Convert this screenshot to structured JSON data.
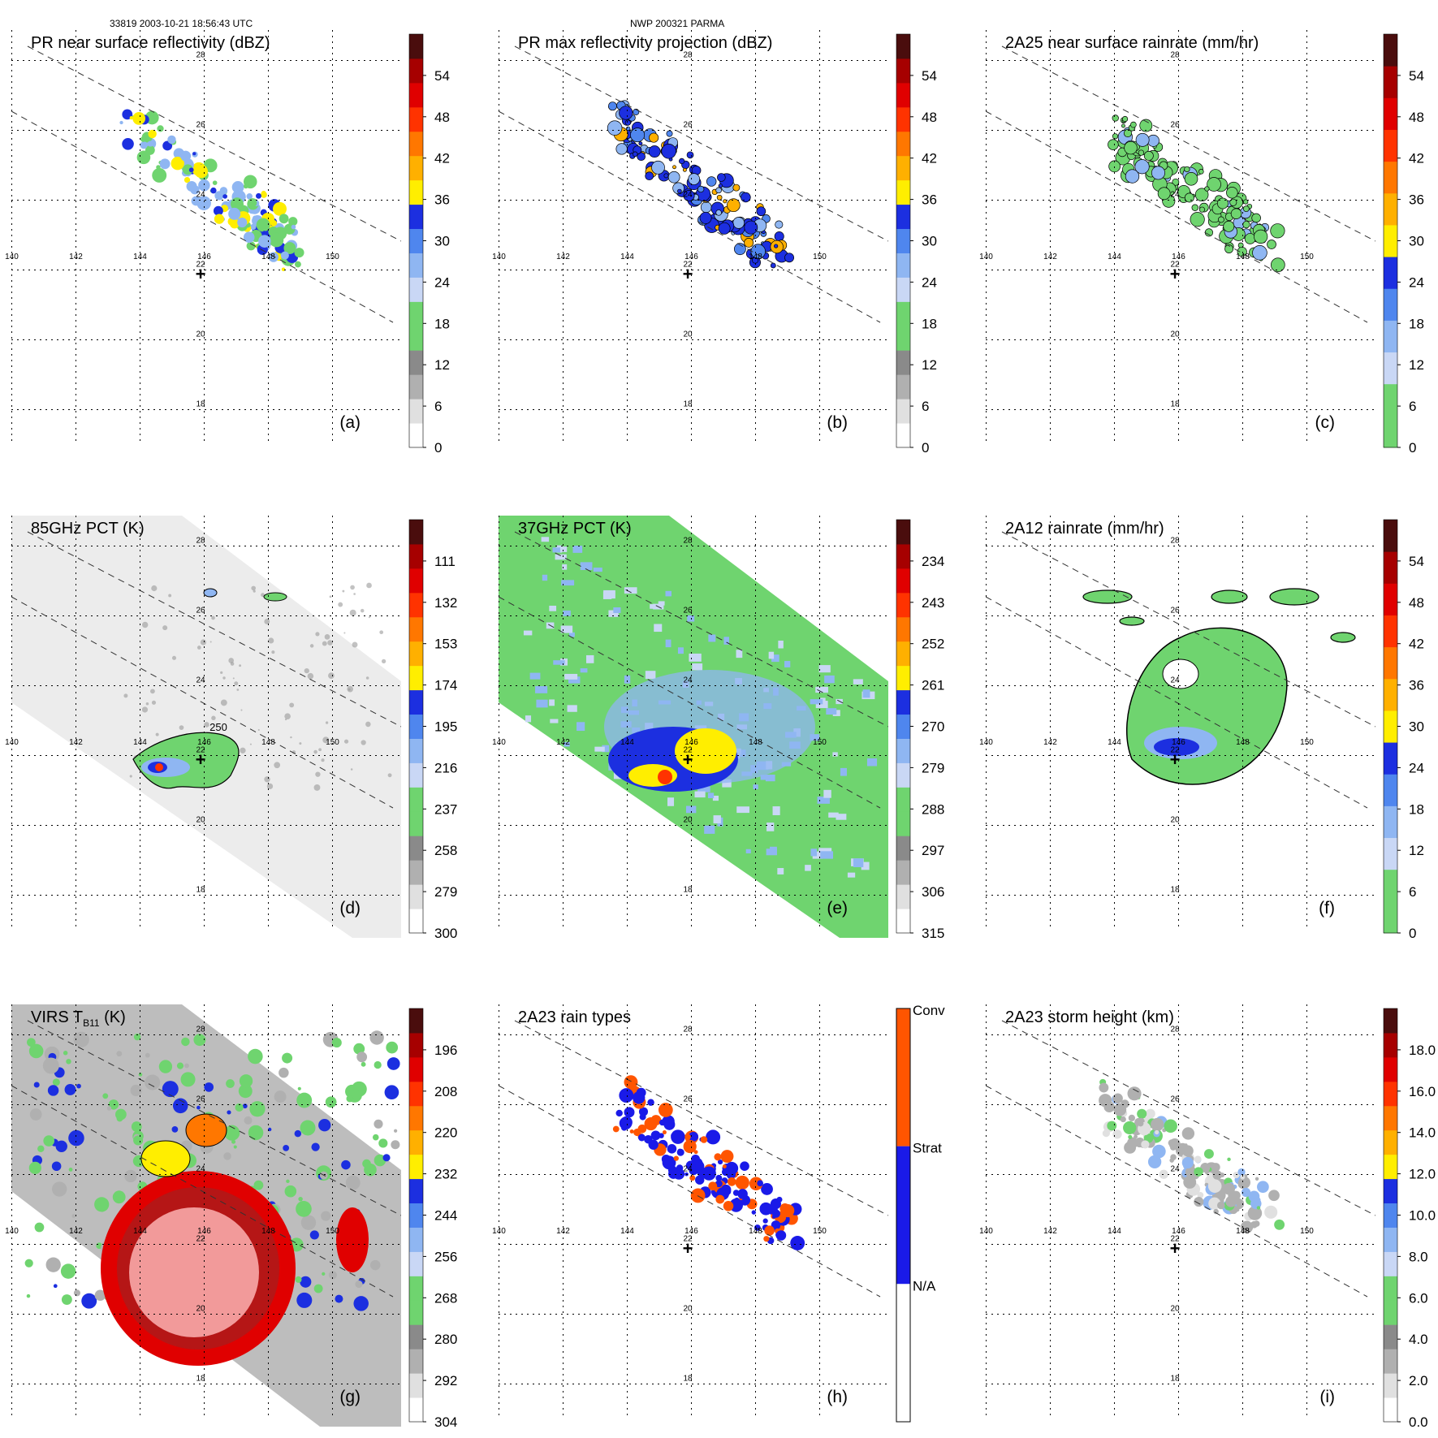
{
  "header": {
    "left": "33819 2003-10-21 18:56:43 UTC",
    "center": "NWP 200321 PARMA"
  },
  "colors": {
    "white": "#ffffff",
    "gray_light": "#e0e0e0",
    "gray": "#b0b0b0",
    "gray_dark": "#8a8a8a",
    "green": "#6fd46f",
    "blue_pale": "#c9d7f5",
    "blue_light": "#8fb6f2",
    "blue_mid": "#4f86ee",
    "blue": "#1c2fe0",
    "yellow": "#ffee00",
    "orange_light": "#ffb000",
    "orange": "#ff7700",
    "red_orange": "#ff3300",
    "red": "#e00000",
    "red_dark": "#a60000",
    "maroon": "#4a0d0d",
    "pink": "#f29a9a",
    "conv": "#ff5500",
    "strat": "#1a1ae8"
  },
  "chart_data": [
    {
      "id": "a",
      "type": "heatmap",
      "title": "PR near surface reflectivity (dBZ)",
      "panel_label": "(a)",
      "xlabel": "",
      "ylabel": "",
      "x_ticks": [
        "140",
        "142",
        "144",
        "146",
        "148",
        "150"
      ],
      "y_ticks": [
        "28",
        "26",
        "24",
        "22",
        "20",
        "18"
      ],
      "colorbar": {
        "ticks": [
          "54",
          "48",
          "42",
          "36",
          "30",
          "24",
          "18",
          "12",
          "6",
          "0"
        ],
        "min": 0,
        "max": 60,
        "stops": [
          "white",
          "gray_light",
          "gray",
          "gray_dark",
          "green",
          "green",
          "blue_pale",
          "blue_light",
          "blue_mid",
          "blue",
          "yellow",
          "orange_light",
          "orange",
          "red_orange",
          "red",
          "red_dark",
          "maroon"
        ]
      },
      "storm_center": "+",
      "swath": true,
      "field": "pr",
      "field_bins": [
        "green",
        "blue_light",
        "blue",
        "blue_light",
        "yellow",
        "green"
      ]
    },
    {
      "id": "b",
      "type": "heatmap",
      "title": "PR max reflectivity projection (dBZ)",
      "panel_label": "(b)",
      "xlabel": "",
      "ylabel": "",
      "x_ticks": [
        "140",
        "142",
        "144",
        "146",
        "148",
        "150"
      ],
      "y_ticks": [
        "28",
        "26",
        "24",
        "22",
        "20",
        "18"
      ],
      "colorbar": {
        "ticks": [
          "54",
          "48",
          "42",
          "36",
          "30",
          "24",
          "18",
          "12",
          "6",
          "0"
        ],
        "min": 0,
        "max": 60,
        "stops": [
          "white",
          "gray_light",
          "gray",
          "gray_dark",
          "green",
          "green",
          "blue_pale",
          "blue_light",
          "blue_mid",
          "blue",
          "yellow",
          "orange_light",
          "orange",
          "red_orange",
          "red",
          "red_dark",
          "maroon"
        ]
      },
      "storm_center": "+",
      "swath": true,
      "field": "pr",
      "field_bins": [
        "blue",
        "blue_light",
        "blue",
        "blue_mid",
        "orange_light",
        "blue"
      ]
    },
    {
      "id": "c",
      "type": "heatmap",
      "title": "2A25 near surface rainrate (mm/hr)",
      "panel_label": "(c)",
      "xlabel": "",
      "ylabel": "",
      "x_ticks": [
        "140",
        "142",
        "144",
        "146",
        "148",
        "150"
      ],
      "y_ticks": [
        "28",
        "26",
        "24",
        "22",
        "20",
        "18"
      ],
      "colorbar": {
        "ticks": [
          "54",
          "48",
          "42",
          "36",
          "30",
          "24",
          "18",
          "12",
          "6",
          "0"
        ],
        "min": 0,
        "max": 60,
        "stops": [
          "green",
          "green",
          "blue_pale",
          "blue_light",
          "blue_mid",
          "blue",
          "yellow",
          "orange_light",
          "orange",
          "red_orange",
          "red",
          "red_dark",
          "maroon"
        ]
      },
      "storm_center": "+",
      "swath": true,
      "field": "pr",
      "field_bins": [
        "green",
        "green",
        "green",
        "green",
        "blue_light",
        "green"
      ]
    },
    {
      "id": "d",
      "type": "heatmap",
      "title": "85GHz PCT (K)",
      "panel_label": "(d)",
      "xlabel": "",
      "ylabel": "",
      "x_ticks": [
        "140",
        "142",
        "144",
        "146",
        "148",
        "150"
      ],
      "y_ticks": [
        "28",
        "26",
        "24",
        "22",
        "20",
        "18"
      ],
      "colorbar": {
        "ticks": [
          "111",
          "132",
          "153",
          "174",
          "195",
          "216",
          "237",
          "258",
          "279",
          "300"
        ],
        "min": 90,
        "max": 300,
        "stops": [
          "white",
          "gray_light",
          "gray",
          "gray_dark",
          "green",
          "green",
          "blue_pale",
          "blue_light",
          "blue_mid",
          "blue",
          "yellow",
          "orange_light",
          "orange",
          "red_orange",
          "red",
          "red_dark",
          "maroon"
        ]
      },
      "storm_center": "+",
      "swath": false,
      "field": "tmi85",
      "contour_label": "250",
      "field_bins": [
        "gray_light",
        "blue_light",
        "green",
        "blue",
        "red_orange",
        "gray_dark"
      ]
    },
    {
      "id": "e",
      "type": "heatmap",
      "title": "37GHz PCT (K)",
      "panel_label": "(e)",
      "xlabel": "",
      "ylabel": "",
      "x_ticks": [
        "140",
        "142",
        "144",
        "146",
        "148",
        "150"
      ],
      "y_ticks": [
        "28",
        "26",
        "24",
        "22",
        "20",
        "18"
      ],
      "colorbar": {
        "ticks": [
          "234",
          "243",
          "252",
          "261",
          "270",
          "279",
          "288",
          "297",
          "306",
          "315"
        ],
        "min": 225,
        "max": 315,
        "stops": [
          "white",
          "gray_light",
          "gray",
          "gray_dark",
          "green",
          "green",
          "blue_pale",
          "blue_light",
          "blue_mid",
          "blue",
          "yellow",
          "orange_light",
          "orange",
          "red_orange",
          "red",
          "red_dark",
          "maroon"
        ]
      },
      "storm_center": "+",
      "swath": false,
      "field": "tmi37",
      "field_bins": [
        "green",
        "blue_pale",
        "blue_light",
        "blue",
        "yellow",
        "red_orange"
      ]
    },
    {
      "id": "f",
      "type": "heatmap",
      "title": "2A12 rainrate (mm/hr)",
      "panel_label": "(f)",
      "xlabel": "",
      "ylabel": "",
      "x_ticks": [
        "140",
        "142",
        "144",
        "146",
        "148",
        "150"
      ],
      "y_ticks": [
        "28",
        "26",
        "24",
        "22",
        "20",
        "18"
      ],
      "colorbar": {
        "ticks": [
          "54",
          "48",
          "42",
          "36",
          "30",
          "24",
          "18",
          "12",
          "6",
          "0"
        ],
        "min": 0,
        "max": 60,
        "stops": [
          "green",
          "green",
          "blue_pale",
          "blue_light",
          "blue_mid",
          "blue",
          "yellow",
          "orange_light",
          "orange",
          "red_orange",
          "red",
          "red_dark",
          "maroon"
        ]
      },
      "storm_center": "+",
      "swath": true,
      "field": "tmirain",
      "field_bins": [
        "green",
        "green",
        "blue_light",
        "blue",
        "blue_mid",
        "green"
      ]
    },
    {
      "id": "g",
      "type": "heatmap",
      "title": "VIRS T",
      "title_sub": "B11",
      "title_suffix": " (K)",
      "panel_label": "(g)",
      "xlabel": "",
      "ylabel": "",
      "x_ticks": [
        "140",
        "142",
        "144",
        "146",
        "148",
        "150"
      ],
      "y_ticks": [
        "28",
        "26",
        "24",
        "22",
        "20",
        "18"
      ],
      "colorbar": {
        "ticks": [
          "196",
          "208",
          "220",
          "232",
          "244",
          "256",
          "268",
          "280",
          "292",
          "304"
        ],
        "min": 184,
        "max": 304,
        "stops": [
          "white",
          "gray_light",
          "gray",
          "gray_dark",
          "green",
          "green",
          "blue_pale",
          "blue_light",
          "blue_mid",
          "blue",
          "yellow",
          "orange_light",
          "orange",
          "red_orange",
          "red",
          "red_dark",
          "maroon"
        ]
      },
      "storm_center": "",
      "swath": true,
      "field": "virs",
      "field_bins": [
        "gray_light",
        "gray",
        "green",
        "blue",
        "orange",
        "red"
      ]
    },
    {
      "id": "h",
      "type": "heatmap",
      "title": "2A23 rain types",
      "panel_label": "(h)",
      "xlabel": "",
      "ylabel": "",
      "x_ticks": [
        "140",
        "142",
        "144",
        "146",
        "148",
        "150"
      ],
      "y_ticks": [
        "28",
        "26",
        "24",
        "22",
        "20",
        "18"
      ],
      "colorbar": {
        "categories": [
          "Conv",
          "Strat",
          "N/A"
        ],
        "stops": [
          "white",
          "strat",
          "conv"
        ]
      },
      "storm_center": "+",
      "swath": true,
      "field": "pr",
      "field_bins": [
        "strat",
        "conv",
        "strat",
        "strat",
        "conv",
        "strat"
      ]
    },
    {
      "id": "i",
      "type": "heatmap",
      "title": "2A23 storm height (km)",
      "panel_label": "(i)",
      "xlabel": "",
      "ylabel": "",
      "x_ticks": [
        "140",
        "142",
        "144",
        "146",
        "148",
        "150"
      ],
      "y_ticks": [
        "28",
        "26",
        "24",
        "22",
        "20",
        "18"
      ],
      "colorbar": {
        "ticks": [
          "18.0",
          "16.0",
          "14.0",
          "12.0",
          "10.0",
          "8.0",
          "6.0",
          "4.0",
          "2.0",
          "0.0"
        ],
        "min": 0,
        "max": 20,
        "stops": [
          "white",
          "gray_light",
          "gray",
          "gray_dark",
          "green",
          "green",
          "blue_pale",
          "blue_light",
          "blue_mid",
          "blue",
          "yellow",
          "orange_light",
          "orange",
          "red_orange",
          "red",
          "red_dark",
          "maroon"
        ]
      },
      "storm_center": "+",
      "swath": true,
      "field": "pr",
      "field_bins": [
        "gray_light",
        "gray",
        "green",
        "gray",
        "blue_light",
        "gray"
      ]
    }
  ]
}
